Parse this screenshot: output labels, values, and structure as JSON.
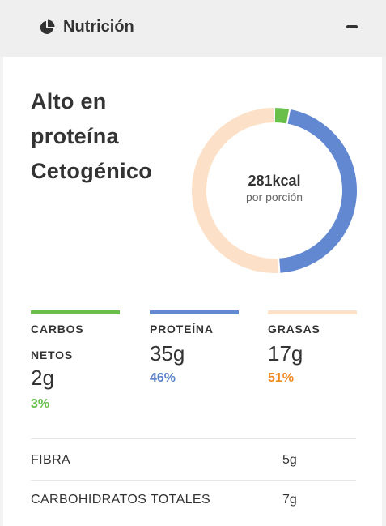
{
  "header": {
    "title": "Nutrición",
    "icon": "pie-chart-icon",
    "collapse_icon": "minus-icon"
  },
  "diet": {
    "lines": [
      "Alto en",
      "proteína",
      "Cetogénico"
    ]
  },
  "chart_data": {
    "type": "pie",
    "title": "",
    "center_value": "281kcal",
    "center_label": "por porción",
    "slices": [
      {
        "name": "CARBOS NETOS",
        "percent": 3,
        "color": "#6abf4b"
      },
      {
        "name": "PROTEÍNA",
        "percent": 46,
        "color": "#6288d1"
      },
      {
        "name": "GRASAS",
        "percent": 51,
        "color": "#fde0c8"
      }
    ]
  },
  "macros": [
    {
      "label_line1": "CARBOS",
      "label_line2": "NETOS",
      "value": "2g",
      "percent": "3%",
      "color": "#6abf4b",
      "pct_color": "#6abf4b"
    },
    {
      "label_line1": "PROTEÍNA",
      "value": "35g",
      "percent": "46%",
      "color": "#6288d1",
      "pct_color": "#5b83c8"
    },
    {
      "label_line1": "GRASAS",
      "value": "17g",
      "percent": "51%",
      "color": "#fde0c8",
      "pct_color": "#f08a24"
    }
  ],
  "details": [
    {
      "label": "FIBRA",
      "value": "5g"
    },
    {
      "label": "CARBOHIDRATOS TOTALES",
      "value": "7g"
    }
  ]
}
